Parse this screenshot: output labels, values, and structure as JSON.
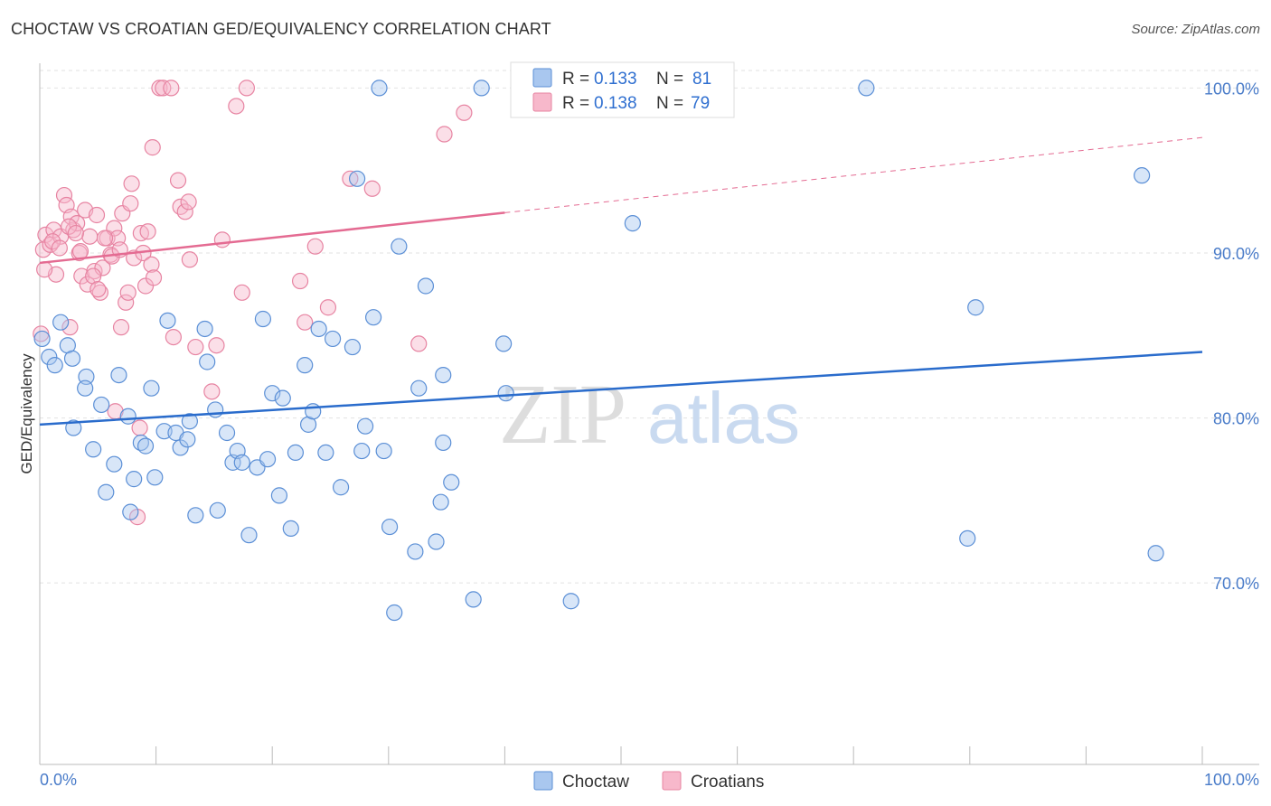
{
  "chart_data": {
    "type": "scatter",
    "title": "CHOCTAW VS CROATIAN GED/EQUIVALENCY CORRELATION CHART",
    "source": "Source: ZipAtlas.com",
    "xlabel": "",
    "ylabel": "GED/Equivalency",
    "xlim": [
      0,
      100
    ],
    "ylim": [
      59,
      101.5
    ],
    "x_tick_labels": [
      "0.0%",
      "100.0%"
    ],
    "y_ticks": [
      {
        "value": 70,
        "label": "70.0%"
      },
      {
        "value": 80,
        "label": "80.0%"
      },
      {
        "value": 90,
        "label": "90.0%"
      },
      {
        "value": 100,
        "label": "100.0%"
      }
    ],
    "grid": true,
    "watermark": {
      "part1": "ZIP",
      "part2": "atlas"
    },
    "legend": {
      "placement": "top-center",
      "rows": [
        {
          "r_label": "R =",
          "r_value": "0.133",
          "n_label": "N =",
          "n_value": "81"
        },
        {
          "r_label": "R =",
          "r_value": "0.138",
          "n_label": "N =",
          "n_value": "79"
        }
      ]
    },
    "bottom_legend": [
      "Choctaw",
      "Croatians"
    ],
    "colors": {
      "choctaw_fill": "#a9c7ef",
      "choctaw_stroke": "#5b8fd6",
      "choctaw_line": "#2a6ccc",
      "croatian_fill": "#f7b8cb",
      "croatian_stroke": "#e784a2",
      "croatian_line": "#e46b92",
      "tick_text": "#4a7cc9",
      "grid": "#e2e2e2"
    },
    "series": [
      {
        "name": "Choctaw",
        "regression": {
          "x0": 0,
          "y0": 79.6,
          "x1": 100,
          "y1": 84.0,
          "dash_from": null
        },
        "points": [
          [
            0.2,
            84.8
          ],
          [
            0.8,
            83.7
          ],
          [
            1.3,
            83.2
          ],
          [
            1.8,
            85.8
          ],
          [
            2.4,
            84.4
          ],
          [
            2.8,
            83.6
          ],
          [
            2.9,
            79.4
          ],
          [
            4.0,
            82.5
          ],
          [
            3.9,
            81.8
          ],
          [
            4.6,
            78.1
          ],
          [
            5.3,
            80.8
          ],
          [
            5.7,
            75.5
          ],
          [
            6.4,
            77.2
          ],
          [
            6.8,
            82.6
          ],
          [
            7.6,
            80.1
          ],
          [
            7.8,
            74.3
          ],
          [
            8.1,
            76.3
          ],
          [
            8.7,
            78.5
          ],
          [
            9.1,
            78.3
          ],
          [
            9.6,
            81.8
          ],
          [
            9.9,
            76.4
          ],
          [
            10.7,
            79.2
          ],
          [
            11.0,
            85.9
          ],
          [
            11.7,
            79.1
          ],
          [
            12.1,
            78.2
          ],
          [
            12.7,
            78.7
          ],
          [
            12.9,
            79.8
          ],
          [
            13.4,
            74.1
          ],
          [
            14.2,
            85.4
          ],
          [
            14.4,
            83.4
          ],
          [
            15.1,
            80.5
          ],
          [
            15.3,
            74.4
          ],
          [
            16.1,
            79.1
          ],
          [
            16.6,
            77.3
          ],
          [
            17.0,
            78.0
          ],
          [
            17.4,
            77.3
          ],
          [
            18.0,
            72.9
          ],
          [
            18.7,
            77.0
          ],
          [
            19.2,
            86.0
          ],
          [
            19.6,
            77.5
          ],
          [
            20.0,
            81.5
          ],
          [
            20.6,
            75.3
          ],
          [
            20.9,
            81.2
          ],
          [
            21.6,
            73.3
          ],
          [
            22.0,
            77.9
          ],
          [
            22.8,
            83.2
          ],
          [
            23.1,
            79.6
          ],
          [
            23.5,
            80.4
          ],
          [
            24.0,
            85.4
          ],
          [
            24.6,
            77.9
          ],
          [
            25.2,
            84.8
          ],
          [
            25.9,
            75.8
          ],
          [
            26.9,
            84.3
          ],
          [
            27.3,
            94.5
          ],
          [
            27.7,
            78.0
          ],
          [
            28.0,
            79.5
          ],
          [
            28.7,
            86.1
          ],
          [
            29.6,
            78.0
          ],
          [
            30.1,
            73.4
          ],
          [
            30.5,
            68.2
          ],
          [
            30.9,
            90.4
          ],
          [
            32.3,
            71.9
          ],
          [
            32.6,
            81.8
          ],
          [
            33.2,
            88.0
          ],
          [
            34.1,
            72.5
          ],
          [
            34.5,
            74.9
          ],
          [
            34.7,
            78.5
          ],
          [
            34.7,
            82.6
          ],
          [
            35.4,
            76.1
          ],
          [
            37.3,
            69.0
          ],
          [
            38.0,
            100.0
          ],
          [
            39.9,
            84.5
          ],
          [
            40.1,
            81.5
          ],
          [
            45.7,
            68.9
          ],
          [
            51.0,
            91.8
          ],
          [
            79.8,
            72.7
          ],
          [
            80.5,
            86.7
          ],
          [
            94.8,
            94.7
          ],
          [
            96.0,
            71.8
          ],
          [
            71.1,
            100.0
          ],
          [
            29.2,
            100.0
          ]
        ]
      },
      {
        "name": "Croatians",
        "regression": {
          "x0": 0,
          "y0": 89.4,
          "x1": 100,
          "y1": 97.0,
          "dash_from": 40
        },
        "points": [
          [
            0.1,
            85.1
          ],
          [
            0.3,
            90.2
          ],
          [
            0.5,
            91.1
          ],
          [
            0.9,
            90.5
          ],
          [
            1.2,
            91.4
          ],
          [
            1.4,
            88.7
          ],
          [
            1.8,
            91.0
          ],
          [
            2.1,
            93.5
          ],
          [
            2.3,
            92.9
          ],
          [
            2.7,
            92.2
          ],
          [
            2.9,
            91.4
          ],
          [
            3.2,
            91.8
          ],
          [
            3.4,
            90.0
          ],
          [
            3.6,
            88.6
          ],
          [
            3.9,
            92.6
          ],
          [
            4.3,
            91.0
          ],
          [
            4.7,
            88.9
          ],
          [
            4.9,
            92.3
          ],
          [
            5.2,
            87.6
          ],
          [
            5.4,
            89.1
          ],
          [
            5.8,
            90.9
          ],
          [
            6.1,
            89.9
          ],
          [
            6.4,
            91.5
          ],
          [
            6.7,
            90.9
          ],
          [
            7.1,
            92.4
          ],
          [
            7.4,
            87.0
          ],
          [
            7.6,
            87.6
          ],
          [
            7.8,
            93.0
          ],
          [
            7.9,
            94.2
          ],
          [
            8.1,
            89.7
          ],
          [
            8.4,
            74.0
          ],
          [
            8.7,
            91.2
          ],
          [
            8.9,
            90.0
          ],
          [
            9.1,
            88.0
          ],
          [
            9.6,
            89.3
          ],
          [
            9.8,
            88.5
          ],
          [
            10.3,
            100.0
          ],
          [
            10.6,
            100.0
          ],
          [
            11.3,
            100.0
          ],
          [
            11.9,
            94.4
          ],
          [
            12.1,
            92.8
          ],
          [
            12.5,
            92.5
          ],
          [
            12.8,
            93.1
          ],
          [
            13.4,
            84.3
          ],
          [
            14.8,
            81.6
          ],
          [
            15.2,
            84.4
          ],
          [
            16.9,
            98.9
          ],
          [
            17.4,
            87.6
          ],
          [
            17.8,
            100.0
          ],
          [
            22.4,
            88.3
          ],
          [
            22.8,
            85.8
          ],
          [
            23.7,
            90.4
          ],
          [
            24.8,
            86.7
          ],
          [
            26.7,
            94.5
          ],
          [
            28.6,
            93.9
          ],
          [
            32.6,
            84.5
          ],
          [
            34.8,
            97.2
          ],
          [
            36.5,
            98.5
          ],
          [
            0.4,
            89.0
          ],
          [
            1.1,
            90.7
          ],
          [
            1.7,
            90.3
          ],
          [
            2.5,
            91.6
          ],
          [
            3.1,
            91.2
          ],
          [
            4.1,
            88.1
          ],
          [
            4.6,
            88.6
          ],
          [
            5.0,
            87.8
          ],
          [
            5.6,
            90.9
          ],
          [
            6.2,
            89.8
          ],
          [
            6.9,
            90.2
          ],
          [
            7.0,
            85.5
          ],
          [
            8.6,
            79.4
          ],
          [
            9.3,
            91.3
          ],
          [
            9.7,
            96.4
          ],
          [
            2.6,
            85.5
          ],
          [
            6.5,
            80.4
          ],
          [
            11.5,
            84.9
          ],
          [
            15.7,
            90.8
          ],
          [
            3.5,
            90.1
          ],
          [
            12.9,
            89.6
          ]
        ]
      }
    ]
  }
}
